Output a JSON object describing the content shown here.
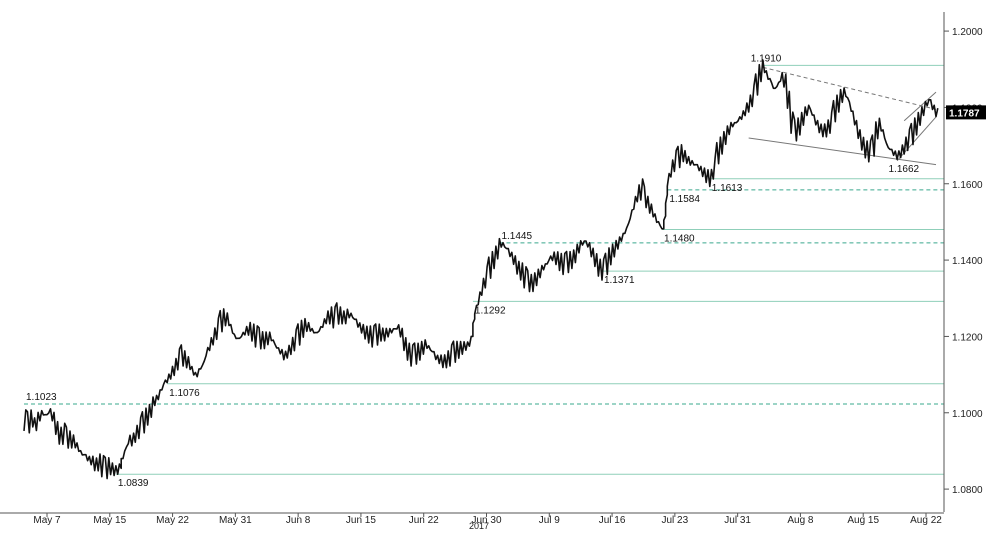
{
  "chart_data": {
    "type": "line",
    "title": "",
    "year_label": "2017",
    "x_ticks": [
      "May 7",
      "May 15",
      "May 22",
      "May 31",
      "Jun 8",
      "Jun 15",
      "Jun 22",
      "Jun 30",
      "Jul 9",
      "Jul 16",
      "Jul 23",
      "Jul 31",
      "Aug 8",
      "Aug 15",
      "Aug 22"
    ],
    "y_ticks": [
      "1.2000",
      "1.1800",
      "1.1600",
      "1.1400",
      "1.1200",
      "1.1000",
      "1.0800"
    ],
    "ylim": [
      1.074,
      1.205
    ],
    "last_price": "1.1787",
    "last_price_bg": "#000000",
    "grid": false,
    "series": [
      {
        "values": [
          [
            0,
            1.098
          ],
          [
            2,
            1.0975
          ],
          [
            4,
            1.0985
          ],
          [
            6,
            1.097
          ],
          [
            8,
            1.099
          ],
          [
            10,
            1.1
          ],
          [
            12,
            1.0995
          ],
          [
            14,
            1.1005
          ],
          [
            16,
            1.099
          ],
          [
            18,
            1.096
          ],
          [
            20,
            1.094
          ],
          [
            22,
            1.0945
          ],
          [
            24,
            1.0935
          ],
          [
            26,
            1.093
          ],
          [
            28,
            1.0925
          ],
          [
            30,
            1.091
          ],
          [
            32,
            1.0895
          ],
          [
            34,
            1.089
          ],
          [
            36,
            1.088
          ],
          [
            38,
            1.0875
          ],
          [
            40,
            1.0865
          ],
          [
            42,
            1.087
          ],
          [
            44,
            1.086
          ],
          [
            46,
            1.0855
          ],
          [
            48,
            1.086
          ],
          [
            50,
            1.0852
          ],
          [
            52,
            1.085
          ],
          [
            54,
            1.086
          ],
          [
            55,
            1.088
          ],
          [
            57,
            1.0905
          ],
          [
            59,
            1.093
          ],
          [
            61,
            1.093
          ],
          [
            63,
            1.0945
          ],
          [
            65,
            1.096
          ],
          [
            67,
            1.0975
          ],
          [
            69,
            1.099
          ],
          [
            71,
            1.1005
          ],
          [
            73,
            1.103
          ],
          [
            75,
            1.104
          ],
          [
            77,
            1.106
          ],
          [
            79,
            1.108
          ],
          [
            81,
            1.109
          ],
          [
            83,
            1.1105
          ],
          [
            85,
            1.112
          ],
          [
            87,
            1.114
          ],
          [
            89,
            1.115
          ],
          [
            91,
            1.114
          ],
          [
            93,
            1.113
          ],
          [
            95,
            1.111
          ],
          [
            97,
            1.11
          ],
          [
            99,
            1.1115
          ],
          [
            101,
            1.113
          ],
          [
            103,
            1.116
          ],
          [
            105,
            1.118
          ],
          [
            107,
            1.12
          ],
          [
            109,
            1.122
          ],
          [
            111,
            1.124
          ],
          [
            113,
            1.125
          ],
          [
            115,
            1.1245
          ],
          [
            117,
            1.122
          ],
          [
            119,
            1.12
          ],
          [
            121,
            1.1195
          ],
          [
            123,
            1.1205
          ],
          [
            125,
            1.1215
          ],
          [
            127,
            1.122
          ],
          [
            129,
            1.121
          ],
          [
            131,
            1.12
          ],
          [
            133,
            1.1195
          ],
          [
            135,
            1.119
          ],
          [
            137,
            1.1195
          ],
          [
            139,
            1.12
          ],
          [
            141,
            1.1185
          ],
          [
            143,
            1.117
          ],
          [
            145,
            1.116
          ],
          [
            147,
            1.115
          ],
          [
            149,
            1.116
          ],
          [
            151,
            1.1175
          ],
          [
            153,
            1.119
          ],
          [
            155,
            1.1205
          ],
          [
            157,
            1.122
          ],
          [
            159,
            1.123
          ],
          [
            161,
            1.1225
          ],
          [
            163,
            1.1215
          ],
          [
            165,
            1.121
          ],
          [
            167,
            1.122
          ],
          [
            169,
            1.1235
          ],
          [
            171,
            1.125
          ],
          [
            173,
            1.1255
          ],
          [
            175,
            1.125
          ],
          [
            177,
            1.126
          ],
          [
            179,
            1.1255
          ],
          [
            181,
            1.125
          ],
          [
            183,
            1.126
          ],
          [
            185,
            1.1255
          ],
          [
            187,
            1.1245
          ],
          [
            189,
            1.123
          ],
          [
            191,
            1.122
          ],
          [
            193,
            1.121
          ],
          [
            195,
            1.1205
          ],
          [
            197,
            1.12
          ],
          [
            199,
            1.1205
          ],
          [
            201,
            1.121
          ],
          [
            203,
            1.1205
          ],
          [
            205,
            1.121
          ],
          [
            207,
            1.1215
          ],
          [
            209,
            1.122
          ],
          [
            211,
            1.1225
          ],
          [
            213,
            1.121
          ],
          [
            215,
            1.118
          ],
          [
            217,
            1.116
          ],
          [
            219,
            1.115
          ],
          [
            221,
            1.1155
          ],
          [
            223,
            1.116
          ],
          [
            225,
            1.117
          ],
          [
            227,
            1.118
          ],
          [
            229,
            1.117
          ],
          [
            231,
            1.116
          ],
          [
            233,
            1.1145
          ],
          [
            235,
            1.114
          ],
          [
            237,
            1.1135
          ],
          [
            239,
            1.114
          ],
          [
            241,
            1.115
          ],
          [
            243,
            1.116
          ],
          [
            245,
            1.1165
          ],
          [
            247,
            1.117
          ],
          [
            249,
            1.1175
          ],
          [
            251,
            1.118
          ],
          [
            253,
            1.12
          ],
          [
            254,
            1.124
          ],
          [
            255,
            1.127
          ],
          [
            257,
            1.13
          ],
          [
            259,
            1.133
          ],
          [
            261,
            1.1355
          ],
          [
            263,
            1.138
          ],
          [
            265,
            1.14
          ],
          [
            267,
            1.142
          ],
          [
            269,
            1.1445
          ],
          [
            271,
            1.144
          ],
          [
            273,
            1.143
          ],
          [
            275,
            1.1415
          ],
          [
            277,
            1.14
          ],
          [
            279,
            1.138
          ],
          [
            281,
            1.137
          ],
          [
            283,
            1.1355
          ],
          [
            285,
            1.1345
          ],
          [
            287,
            1.134
          ],
          [
            289,
            1.135
          ],
          [
            291,
            1.1365
          ],
          [
            293,
            1.138
          ],
          [
            295,
            1.139
          ],
          [
            297,
            1.1405
          ],
          [
            299,
            1.141
          ],
          [
            301,
            1.1405
          ],
          [
            303,
            1.1395
          ],
          [
            305,
            1.139
          ],
          [
            307,
            1.1395
          ],
          [
            309,
            1.14
          ],
          [
            311,
            1.141
          ],
          [
            313,
            1.143
          ],
          [
            315,
            1.1445
          ],
          [
            317,
            1.145
          ],
          [
            319,
            1.144
          ],
          [
            321,
            1.142
          ],
          [
            323,
            1.14
          ],
          [
            325,
            1.138
          ],
          [
            327,
            1.1375
          ],
          [
            329,
            1.139
          ],
          [
            331,
            1.141
          ],
          [
            333,
            1.1425
          ],
          [
            335,
            1.144
          ],
          [
            337,
            1.1455
          ],
          [
            339,
            1.147
          ],
          [
            341,
            1.149
          ],
          [
            343,
            1.152
          ],
          [
            345,
            1.155
          ],
          [
            347,
            1.1575
          ],
          [
            349,
            1.1585
          ],
          [
            351,
            1.1565
          ],
          [
            353,
            1.1545
          ],
          [
            355,
            1.153
          ],
          [
            357,
            1.151
          ],
          [
            359,
            1.1495
          ],
          [
            361,
            1.1482
          ],
          [
            362,
            1.151
          ],
          [
            363,
            1.156
          ],
          [
            364,
            1.161
          ],
          [
            366,
            1.164
          ],
          [
            368,
            1.166
          ],
          [
            370,
            1.167
          ],
          [
            372,
            1.168
          ],
          [
            374,
            1.167
          ],
          [
            376,
            1.166
          ],
          [
            378,
            1.1655
          ],
          [
            380,
            1.165
          ],
          [
            382,
            1.164
          ],
          [
            384,
            1.163
          ],
          [
            386,
            1.162
          ],
          [
            388,
            1.1615
          ],
          [
            390,
            1.164
          ],
          [
            392,
            1.168
          ],
          [
            394,
            1.17
          ],
          [
            396,
            1.172
          ],
          [
            398,
            1.174
          ],
          [
            400,
            1.1755
          ],
          [
            402,
            1.176
          ],
          [
            404,
            1.177
          ],
          [
            406,
            1.178
          ],
          [
            408,
            1.1795
          ],
          [
            410,
            1.181
          ],
          [
            412,
            1.183
          ],
          [
            414,
            1.186
          ],
          [
            416,
            1.189
          ],
          [
            418,
            1.1908
          ],
          [
            420,
            1.1885
          ],
          [
            422,
            1.187
          ],
          [
            424,
            1.185
          ],
          [
            426,
            1.186
          ],
          [
            428,
            1.188
          ],
          [
            430,
            1.187
          ],
          [
            432,
            1.182
          ],
          [
            434,
            1.176
          ],
          [
            436,
            1.174
          ],
          [
            438,
            1.175
          ],
          [
            440,
            1.177
          ],
          [
            442,
            1.179
          ],
          [
            444,
            1.18
          ],
          [
            446,
            1.178
          ],
          [
            448,
            1.176
          ],
          [
            450,
            1.1745
          ],
          [
            452,
            1.174
          ],
          [
            454,
            1.1745
          ],
          [
            456,
            1.176
          ],
          [
            458,
            1.179
          ],
          [
            460,
            1.181
          ],
          [
            462,
            1.183
          ],
          [
            464,
            1.184
          ],
          [
            466,
            1.182
          ],
          [
            468,
            1.179
          ],
          [
            470,
            1.176
          ],
          [
            472,
            1.173
          ],
          [
            474,
            1.1705
          ],
          [
            476,
            1.169
          ],
          [
            478,
            1.1685
          ],
          [
            480,
            1.17
          ],
          [
            482,
            1.174
          ],
          [
            484,
            1.1755
          ],
          [
            486,
            1.173
          ],
          [
            488,
            1.17
          ],
          [
            490,
            1.169
          ],
          [
            492,
            1.168
          ],
          [
            494,
            1.1675
          ],
          [
            496,
            1.1685
          ],
          [
            498,
            1.17
          ],
          [
            500,
            1.1715
          ],
          [
            502,
            1.173
          ],
          [
            504,
            1.175
          ],
          [
            506,
            1.177
          ],
          [
            508,
            1.179
          ],
          [
            510,
            1.181
          ],
          [
            512,
            1.182
          ],
          [
            514,
            1.18
          ],
          [
            516,
            1.1787
          ]
        ]
      }
    ],
    "levels": [
      {
        "label": "1.1910",
        "value": 1.191,
        "style": "solid",
        "color": "#8fcfb9"
      },
      {
        "label": "1.1662",
        "value": 1.1662,
        "style": "none",
        "color": "#8fcfb9"
      },
      {
        "label": "1.1613",
        "value": 1.1613,
        "style": "solid",
        "color": "#8fcfb9"
      },
      {
        "label": "1.1584",
        "value": 1.1584,
        "style": "dashed",
        "color": "#3aa88e"
      },
      {
        "label": "1.1480",
        "value": 1.148,
        "style": "solid",
        "color": "#8fcfb9"
      },
      {
        "label": "1.1445",
        "value": 1.1445,
        "style": "dashed",
        "color": "#3aa88e"
      },
      {
        "label": "1.1371",
        "value": 1.1371,
        "style": "solid",
        "color": "#8fcfb9"
      },
      {
        "label": "1.1292",
        "value": 1.1292,
        "style": "solid",
        "color": "#8fcfb9"
      },
      {
        "label": "1.1076",
        "value": 1.1076,
        "style": "solid",
        "color": "#8fcfb9"
      },
      {
        "label": "1.1023",
        "value": 1.1023,
        "style": "dashed",
        "color": "#3aa88e"
      },
      {
        "label": "1.0839",
        "value": 1.0839,
        "style": "solid",
        "color": "#8fcfb9"
      }
    ],
    "colors": {
      "price_line": "#111111",
      "axis": "#555555",
      "trendline": "#777777"
    }
  }
}
